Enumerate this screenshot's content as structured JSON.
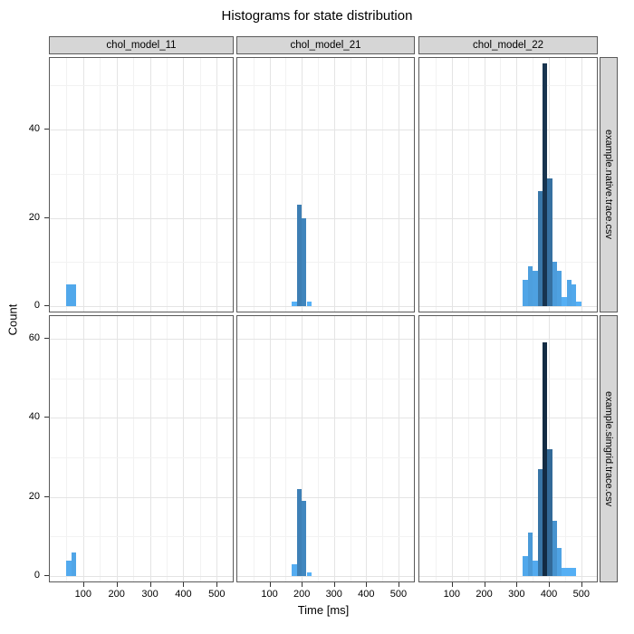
{
  "title": "Histograms for state distribution",
  "colors": {
    "background": "#ffffff",
    "strip_bg": "#d6d6d6",
    "strip_border": "#5a5a5a",
    "panel_border": "#5a5a5a",
    "grid_major": "#e4e4e4",
    "grid_minor": "#f2f2f2",
    "tick_mark": "#333333",
    "text": "#000000"
  },
  "chart_data": {
    "type": "bar",
    "subtype": "faceted-histogram",
    "title": "Histograms for state distribution",
    "xlabel": "Time [ms]",
    "ylabel": "Count",
    "legend_position": "none",
    "facet_cols": [
      "chol_model_11",
      "chol_model_21",
      "chol_model_22"
    ],
    "facet_rows": [
      "example.native.trace.csv",
      "example.simgrid.trace.csv"
    ],
    "x_ticks": [
      100,
      200,
      300,
      400,
      500
    ],
    "x_minor_ticks": [
      50,
      150,
      250,
      350,
      450
    ],
    "x_range": [
      0,
      548
    ],
    "bin_width": 15,
    "fill_scale": {
      "low": "#56B1F7",
      "high": "#132B43",
      "domain": [
        1,
        59
      ]
    },
    "rows": [
      {
        "label": "example.native.trace.csv",
        "y_ticks": [
          0,
          20,
          40
        ],
        "y_minor_ticks": [
          10,
          30,
          50
        ],
        "y_range": [
          0,
          56.2
        ],
        "panels": [
          {
            "col": "chol_model_11",
            "bins": [
              {
                "start": 50,
                "count": 5
              },
              {
                "start": 65,
                "count": 5
              }
            ]
          },
          {
            "col": "chol_model_21",
            "bins": [
              {
                "start": 170,
                "count": 1
              },
              {
                "start": 185,
                "count": 23
              },
              {
                "start": 200,
                "count": 20
              },
              {
                "start": 215,
                "count": 1
              }
            ]
          },
          {
            "col": "chol_model_22",
            "bins": [
              {
                "start": 320,
                "count": 6
              },
              {
                "start": 335,
                "count": 9
              },
              {
                "start": 350,
                "count": 8
              },
              {
                "start": 365,
                "count": 26
              },
              {
                "start": 380,
                "count": 55
              },
              {
                "start": 395,
                "count": 29
              },
              {
                "start": 410,
                "count": 10
              },
              {
                "start": 425,
                "count": 8
              },
              {
                "start": 440,
                "count": 2
              },
              {
                "start": 455,
                "count": 6
              },
              {
                "start": 470,
                "count": 5
              },
              {
                "start": 485,
                "count": 1
              }
            ]
          }
        ]
      },
      {
        "label": "example.simgrid.trace.csv",
        "y_ticks": [
          0,
          20,
          40,
          60
        ],
        "y_minor_ticks": [
          10,
          30,
          50
        ],
        "y_range": [
          0,
          65.7
        ],
        "panels": [
          {
            "col": "chol_model_11",
            "bins": [
              {
                "start": 50,
                "count": 4
              },
              {
                "start": 65,
                "count": 6
              }
            ]
          },
          {
            "col": "chol_model_21",
            "bins": [
              {
                "start": 170,
                "count": 3
              },
              {
                "start": 185,
                "count": 22
              },
              {
                "start": 200,
                "count": 19
              },
              {
                "start": 215,
                "count": 1
              }
            ]
          },
          {
            "col": "chol_model_22",
            "bins": [
              {
                "start": 320,
                "count": 5
              },
              {
                "start": 335,
                "count": 11
              },
              {
                "start": 350,
                "count": 4
              },
              {
                "start": 365,
                "count": 27
              },
              {
                "start": 380,
                "count": 59
              },
              {
                "start": 395,
                "count": 32
              },
              {
                "start": 410,
                "count": 14
              },
              {
                "start": 425,
                "count": 7
              },
              {
                "start": 440,
                "count": 2
              },
              {
                "start": 455,
                "count": 2
              },
              {
                "start": 470,
                "count": 2
              }
            ]
          }
        ]
      }
    ]
  }
}
